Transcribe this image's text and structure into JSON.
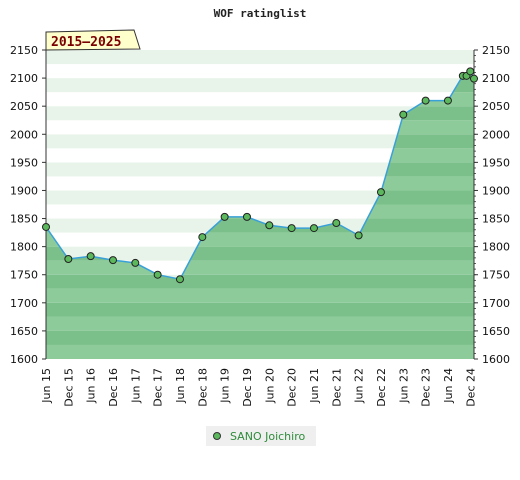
{
  "chart_data": {
    "type": "line",
    "title": "WOF ratinglist",
    "range_label": "2015–2025",
    "ylim": [
      1600,
      2150
    ],
    "y_ticks": [
      1600,
      1650,
      1700,
      1750,
      1800,
      1850,
      1900,
      1950,
      2000,
      2050,
      2100,
      2150
    ],
    "x_range": [
      "2015-06",
      "2025-01"
    ],
    "x_ticks": [
      "Jun 15",
      "Dec 15",
      "Jun 16",
      "Dec 16",
      "Jun 17",
      "Dec 17",
      "Jun 18",
      "Dec 18",
      "Jun 19",
      "Dec 19",
      "Jun 20",
      "Dec 20",
      "Jun 21",
      "Dec 21",
      "Jun 22",
      "Dec 22",
      "Jun 23",
      "Dec 23",
      "Jun 24",
      "Dec 24"
    ],
    "legend_position": "bottom-center",
    "series": [
      {
        "name": "SANO Joichiro",
        "color": "#3aa0d8",
        "marker_color": "#5cb85c",
        "points": [
          {
            "date": "2015-06",
            "rating": 1835
          },
          {
            "date": "2015-12",
            "rating": 1778
          },
          {
            "date": "2016-06",
            "rating": 1783
          },
          {
            "date": "2016-12",
            "rating": 1776
          },
          {
            "date": "2017-06",
            "rating": 1771
          },
          {
            "date": "2017-12",
            "rating": 1750
          },
          {
            "date": "2018-06",
            "rating": 1742
          },
          {
            "date": "2018-12",
            "rating": 1817
          },
          {
            "date": "2019-06",
            "rating": 1853
          },
          {
            "date": "2019-12",
            "rating": 1853
          },
          {
            "date": "2020-06",
            "rating": 1838
          },
          {
            "date": "2020-12",
            "rating": 1833
          },
          {
            "date": "2021-06",
            "rating": 1833
          },
          {
            "date": "2021-12",
            "rating": 1842
          },
          {
            "date": "2022-06",
            "rating": 1820
          },
          {
            "date": "2022-12",
            "rating": 1897
          },
          {
            "date": "2023-06",
            "rating": 2035
          },
          {
            "date": "2023-12",
            "rating": 2060
          },
          {
            "date": "2024-06",
            "rating": 2060
          },
          {
            "date": "2024-10",
            "rating": 2104
          },
          {
            "date": "2024-11",
            "rating": 2104
          },
          {
            "date": "2024-12",
            "rating": 2112
          },
          {
            "date": "2025-01",
            "rating": 2099
          }
        ]
      }
    ]
  }
}
